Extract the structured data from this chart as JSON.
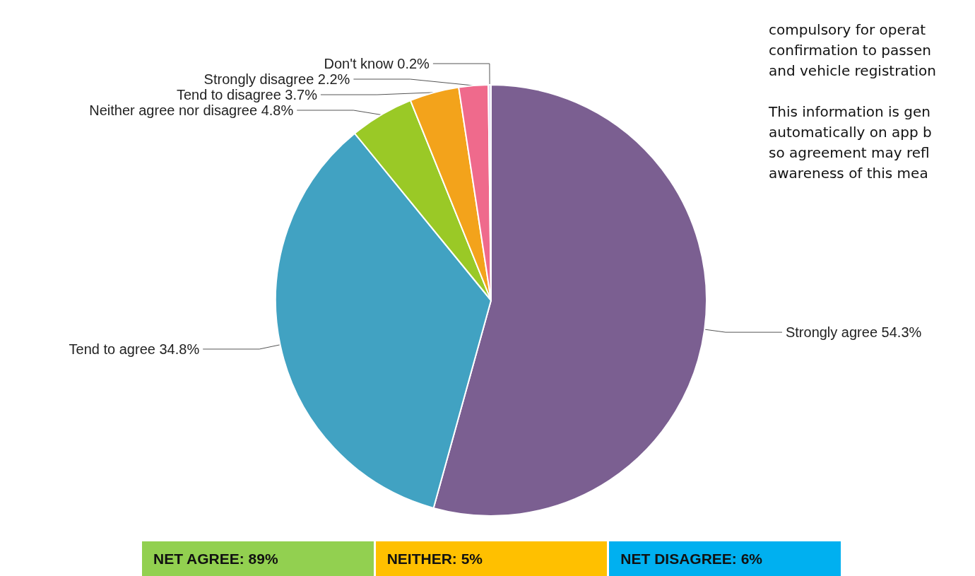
{
  "chart_data": {
    "type": "pie",
    "categories": [
      "Strongly agree",
      "Tend to agree",
      "Neither agree nor disagree",
      "Tend to disagree",
      "Strongly disagree",
      "Don't know"
    ],
    "values": [
      54.3,
      34.8,
      4.8,
      3.7,
      2.2,
      0.2
    ],
    "value_labels": [
      "54.3%",
      "34.8%",
      "4.8%",
      "3.7%",
      "2.2%",
      "0.2%"
    ],
    "colors": [
      "#7b5f91",
      "#41a2c2",
      "#9ac926",
      "#f3a31b",
      "#ef6a8c",
      "#ddd4f2"
    ],
    "legend": false,
    "annotations": [
      "compulsory for operat",
      "confirmation to passen",
      "and vehicle registration",
      "This information is gen",
      "automatically on app b",
      "so agreement may refl",
      "awareness of this mea",
      "NET AGREE: 89%",
      "NEITHER: 5%",
      "NET DISAGREE: 6%"
    ]
  }
}
